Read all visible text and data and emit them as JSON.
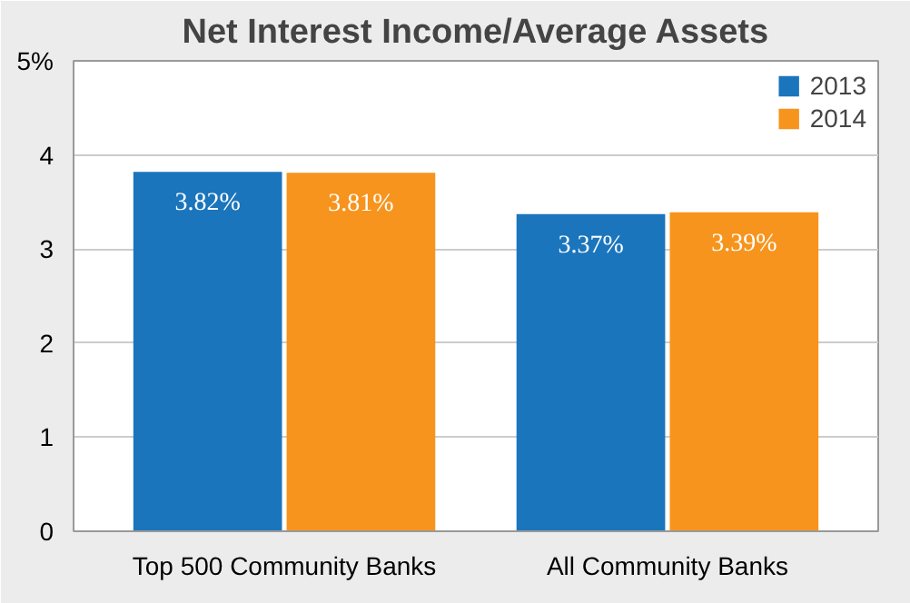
{
  "chart_data": {
    "type": "bar",
    "title": "Net Interest Income/Average Assets",
    "categories": [
      "Top 500 Community Banks",
      "All Community Banks"
    ],
    "series": [
      {
        "name": "2013",
        "color": "#1b75bc",
        "values": [
          3.82,
          3.37
        ],
        "value_labels": [
          "3.82%",
          "3.37%"
        ]
      },
      {
        "name": "2014",
        "color": "#f7941d",
        "values": [
          3.81,
          3.39
        ],
        "value_labels": [
          "3.81%",
          "3.39%"
        ]
      }
    ],
    "ylim": [
      0,
      5
    ],
    "yticks": [
      0,
      1,
      2,
      3,
      4,
      {
        "value": 5,
        "label": "5%"
      }
    ],
    "grid": "y",
    "legend": "top right"
  }
}
